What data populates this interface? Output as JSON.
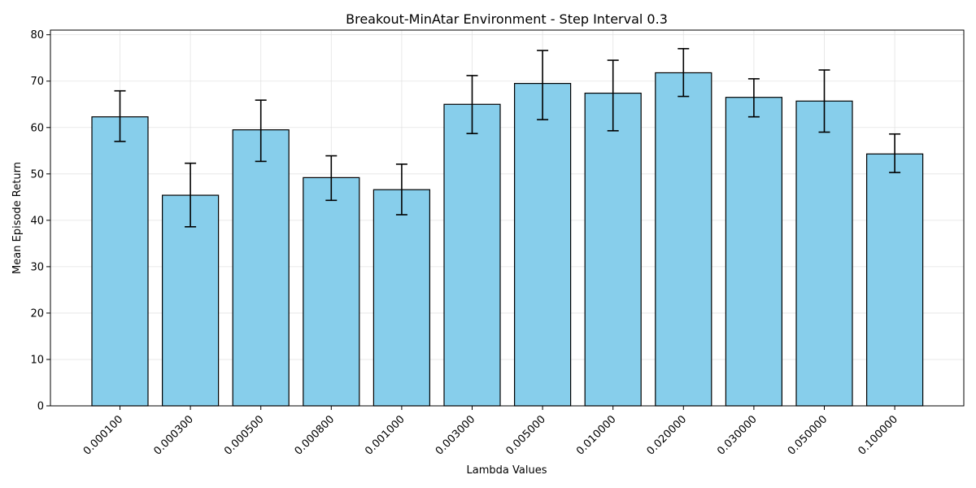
{
  "chart_data": {
    "type": "bar",
    "title": "Breakout-MinAtar Environment - Step Interval 0.3",
    "xlabel": "Lambda Values",
    "ylabel": "Mean Episode Return",
    "categories": [
      "0.000100",
      "0.000300",
      "0.000500",
      "0.000800",
      "0.001000",
      "0.003000",
      "0.005000",
      "0.010000",
      "0.020000",
      "0.030000",
      "0.050000",
      "0.100000"
    ],
    "values": [
      62.3,
      45.4,
      59.5,
      49.2,
      46.6,
      65.0,
      69.5,
      67.4,
      71.8,
      66.5,
      65.7,
      54.3
    ],
    "error_low": [
      57.0,
      38.6,
      52.7,
      44.3,
      41.2,
      58.7,
      61.7,
      59.3,
      66.7,
      62.3,
      59.0,
      50.3
    ],
    "error_high": [
      67.9,
      52.3,
      65.9,
      53.9,
      52.1,
      71.2,
      76.6,
      74.5,
      77.0,
      70.5,
      72.4,
      58.6
    ],
    "ylim": [
      0,
      81
    ],
    "yticks": [
      0,
      10,
      20,
      30,
      40,
      50,
      60,
      70,
      80
    ],
    "grid": true,
    "bar_color": "#87ceeb",
    "edge_color": "#000000"
  }
}
